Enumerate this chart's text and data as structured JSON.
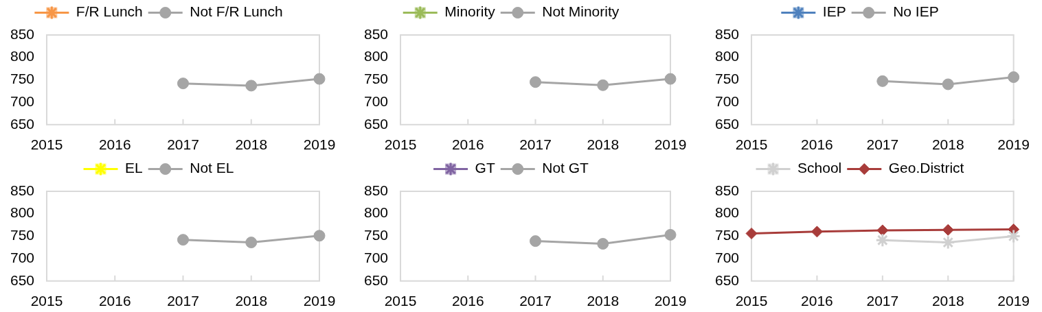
{
  "chart_data": [
    {
      "type": "line",
      "categories": [
        "2015",
        "2016",
        "2017",
        "2018",
        "2019"
      ],
      "series": [
        {
          "name": "F/R Lunch",
          "color": "#f79646",
          "marker": "cross",
          "values": [
            null,
            null,
            null,
            null,
            null
          ]
        },
        {
          "name": "Not F/R Lunch",
          "color": "#a5a5a5",
          "marker": "circle",
          "values": [
            null,
            null,
            742,
            737,
            752
          ]
        }
      ],
      "ylim": [
        650,
        850
      ],
      "yticks": [
        650,
        700,
        750,
        800,
        850
      ],
      "legend": "top",
      "grid": false
    },
    {
      "type": "line",
      "categories": [
        "2015",
        "2016",
        "2017",
        "2018",
        "2019"
      ],
      "series": [
        {
          "name": "Minority",
          "color": "#9bbb59",
          "marker": "cross",
          "values": [
            null,
            null,
            null,
            null,
            null
          ]
        },
        {
          "name": "Not Minority",
          "color": "#a5a5a5",
          "marker": "circle",
          "values": [
            null,
            null,
            745,
            738,
            752
          ]
        }
      ],
      "ylim": [
        650,
        850
      ],
      "yticks": [
        650,
        700,
        750,
        800,
        850
      ],
      "legend": "top",
      "grid": false
    },
    {
      "type": "line",
      "categories": [
        "2015",
        "2016",
        "2017",
        "2018",
        "2019"
      ],
      "series": [
        {
          "name": "IEP",
          "color": "#4f81bd",
          "marker": "cross",
          "values": [
            null,
            null,
            null,
            null,
            null
          ]
        },
        {
          "name": "No IEP",
          "color": "#a5a5a5",
          "marker": "circle",
          "values": [
            null,
            null,
            747,
            740,
            756
          ]
        }
      ],
      "ylim": [
        650,
        850
      ],
      "yticks": [
        650,
        700,
        750,
        800,
        850
      ],
      "legend": "top",
      "grid": false
    },
    {
      "type": "line",
      "categories": [
        "2015",
        "2016",
        "2017",
        "2018",
        "2019"
      ],
      "series": [
        {
          "name": "EL",
          "color": "#ffff00",
          "marker": "cross",
          "values": [
            null,
            null,
            null,
            null,
            null
          ]
        },
        {
          "name": "Not EL",
          "color": "#a5a5a5",
          "marker": "circle",
          "values": [
            null,
            null,
            742,
            736,
            751
          ]
        }
      ],
      "ylim": [
        650,
        850
      ],
      "yticks": [
        650,
        700,
        750,
        800,
        850
      ],
      "legend": "top",
      "grid": false
    },
    {
      "type": "line",
      "categories": [
        "2015",
        "2016",
        "2017",
        "2018",
        "2019"
      ],
      "series": [
        {
          "name": "GT",
          "color": "#8064a2",
          "marker": "cross",
          "values": [
            null,
            null,
            null,
            null,
            null
          ]
        },
        {
          "name": "Not GT",
          "color": "#a5a5a5",
          "marker": "circle",
          "values": [
            null,
            null,
            739,
            733,
            753
          ]
        }
      ],
      "ylim": [
        650,
        850
      ],
      "yticks": [
        650,
        700,
        750,
        800,
        850
      ],
      "legend": "top",
      "grid": false
    },
    {
      "type": "line",
      "categories": [
        "2015",
        "2016",
        "2017",
        "2018",
        "2019"
      ],
      "series": [
        {
          "name": "School",
          "color": "#d0d0d0",
          "marker": "cross",
          "values": [
            null,
            null,
            741,
            736,
            750
          ]
        },
        {
          "name": "Geo.District",
          "color": "#a83c3a",
          "marker": "diamond",
          "values": [
            756,
            760,
            763,
            764,
            765
          ]
        }
      ],
      "ylim": [
        650,
        850
      ],
      "yticks": [
        650,
        700,
        750,
        800,
        850
      ],
      "legend": "top",
      "grid": false
    }
  ]
}
